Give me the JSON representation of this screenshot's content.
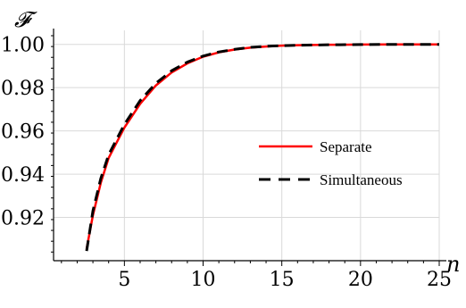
{
  "chart_data": {
    "type": "line",
    "ylabel": "𝓕",
    "xlabel": "n",
    "xlim": [
      0.5,
      25
    ],
    "ylim": [
      0.9,
      1.004
    ],
    "x_ticks": [
      5,
      10,
      15,
      20,
      25
    ],
    "x_tick_labels": [
      "5",
      "10",
      "15",
      "20",
      "25"
    ],
    "y_ticks": [
      0.92,
      0.94,
      0.96,
      0.98,
      1.0
    ],
    "y_tick_labels": [
      "0.92",
      "0.94",
      "0.96",
      "0.98",
      "1.00"
    ],
    "grid": true,
    "legend_position": "right-middle",
    "series": [
      {
        "name": "Separate",
        "color": "#ff0000",
        "style": "solid",
        "x": [
          2.6,
          3,
          3.5,
          4,
          5,
          6,
          7,
          8,
          9,
          10,
          11,
          12,
          13,
          14,
          15,
          16,
          18,
          20,
          22,
          25
        ],
        "y": [
          0.9055,
          0.921,
          0.936,
          0.9475,
          0.9615,
          0.9725,
          0.981,
          0.987,
          0.9912,
          0.9943,
          0.9963,
          0.9976,
          0.9985,
          0.999,
          0.9994,
          0.9996,
          0.9998,
          0.9999,
          1.0,
          1.0
        ]
      },
      {
        "name": "Simultaneous",
        "color": "#000000",
        "style": "dashed",
        "x": [
          2.6,
          3,
          3.5,
          4,
          5,
          6,
          7,
          8,
          9,
          10,
          11,
          12,
          13,
          14,
          15,
          16,
          18,
          20,
          22,
          25
        ],
        "y": [
          0.9045,
          0.923,
          0.938,
          0.949,
          0.963,
          0.974,
          0.982,
          0.9878,
          0.9918,
          0.9946,
          0.9965,
          0.9977,
          0.9986,
          0.9991,
          0.9994,
          0.9996,
          0.9998,
          0.9999,
          1.0,
          1.0
        ]
      }
    ]
  }
}
